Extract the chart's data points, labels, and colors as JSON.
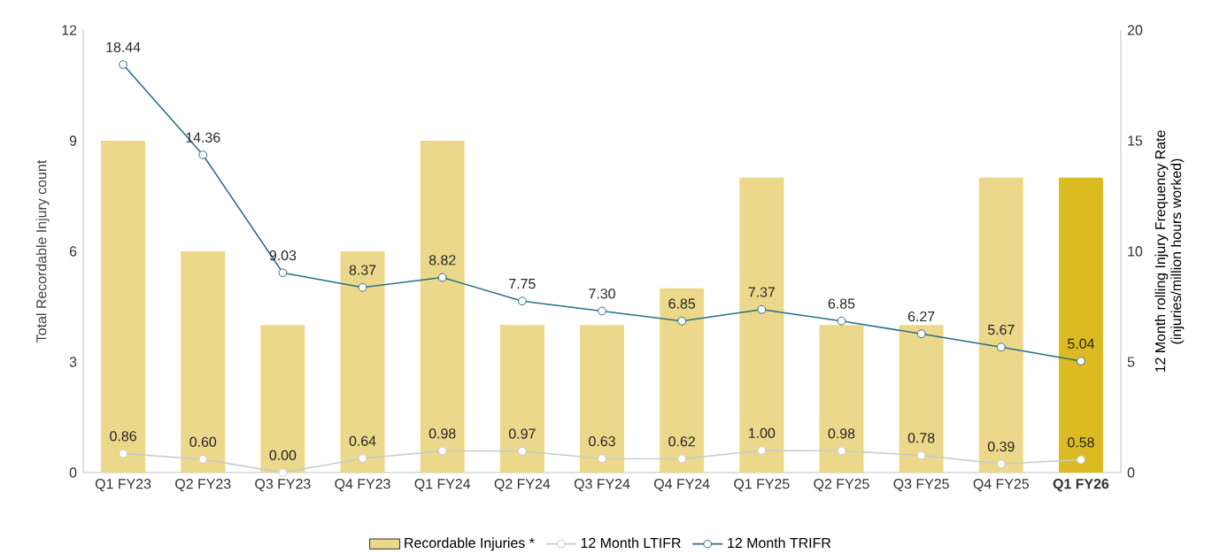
{
  "chart_data": {
    "type": "bar",
    "categories": [
      "Q1 FY23",
      "Q2 FY23",
      "Q3 FY23",
      "Q4 FY23",
      "Q1 FY24",
      "Q2 FY24",
      "Q3 FY24",
      "Q4 FY24",
      "Q1 FY25",
      "Q2 FY25",
      "Q3 FY25",
      "Q4 FY25",
      "**Q1 FY26**"
    ],
    "ylabel": "Total Recordable Injury count",
    "y2label": "12 Month rolling Injury Frequency Rate (injuries/million hours worked)",
    "ylim": [
      0,
      12
    ],
    "yticks": [
      0,
      3,
      6,
      9,
      12
    ],
    "y2lim": [
      0,
      20
    ],
    "y2ticks": [
      0,
      5,
      10,
      15,
      20
    ],
    "series": [
      {
        "name": "Recordable Injuries *",
        "color": "#ecd88a",
        "colors": [
          "#ecd88a",
          "#ecd88a",
          "#ecd88a",
          "#ecd88a",
          "#ecd88a",
          "#ecd88a",
          "#ecd88a",
          "#ecd88a",
          "#ecd88a",
          "#ecd88a",
          "#ecd88a",
          "#ecd88a",
          "#dcbb22"
        ],
        "values": [
          9,
          6,
          4,
          6,
          9,
          4,
          4,
          5,
          8,
          4,
          4,
          8,
          8
        ]
      },
      {
        "name": "12 Month LTIFR",
        "type": "line",
        "axis": "y2",
        "color": "#c5cccc",
        "marker": "circle",
        "line_style": "solid",
        "values": [
          0.86,
          0.6,
          0.0,
          0.64,
          0.98,
          0.97,
          0.63,
          0.62,
          1.0,
          0.98,
          0.78,
          0.39,
          0.58
        ],
        "value_labels": [
          "0.86",
          "0.60",
          "0.00",
          "0.64",
          "0.98",
          "0.97",
          "0.63",
          "0.62",
          "1.00",
          "0.98",
          "0.78",
          "0.39",
          "0.58"
        ]
      },
      {
        "name": "12 Month TRIFR",
        "type": "line",
        "axis": "y2",
        "color": "#2b6f88",
        "marker": "circle",
        "line_style": "solid",
        "values": [
          18.44,
          14.36,
          9.03,
          8.37,
          8.82,
          7.75,
          7.3,
          6.85,
          7.37,
          6.85,
          6.27,
          5.67,
          5.04
        ],
        "value_labels": [
          "18.44",
          "14.36",
          "9.03",
          "8.37",
          "8.82",
          "7.75",
          "7.30",
          "6.85",
          "7.37",
          "6.85",
          "6.27",
          "5.67",
          "5.04"
        ]
      }
    ],
    "legend": "bottom",
    "grid": false
  }
}
